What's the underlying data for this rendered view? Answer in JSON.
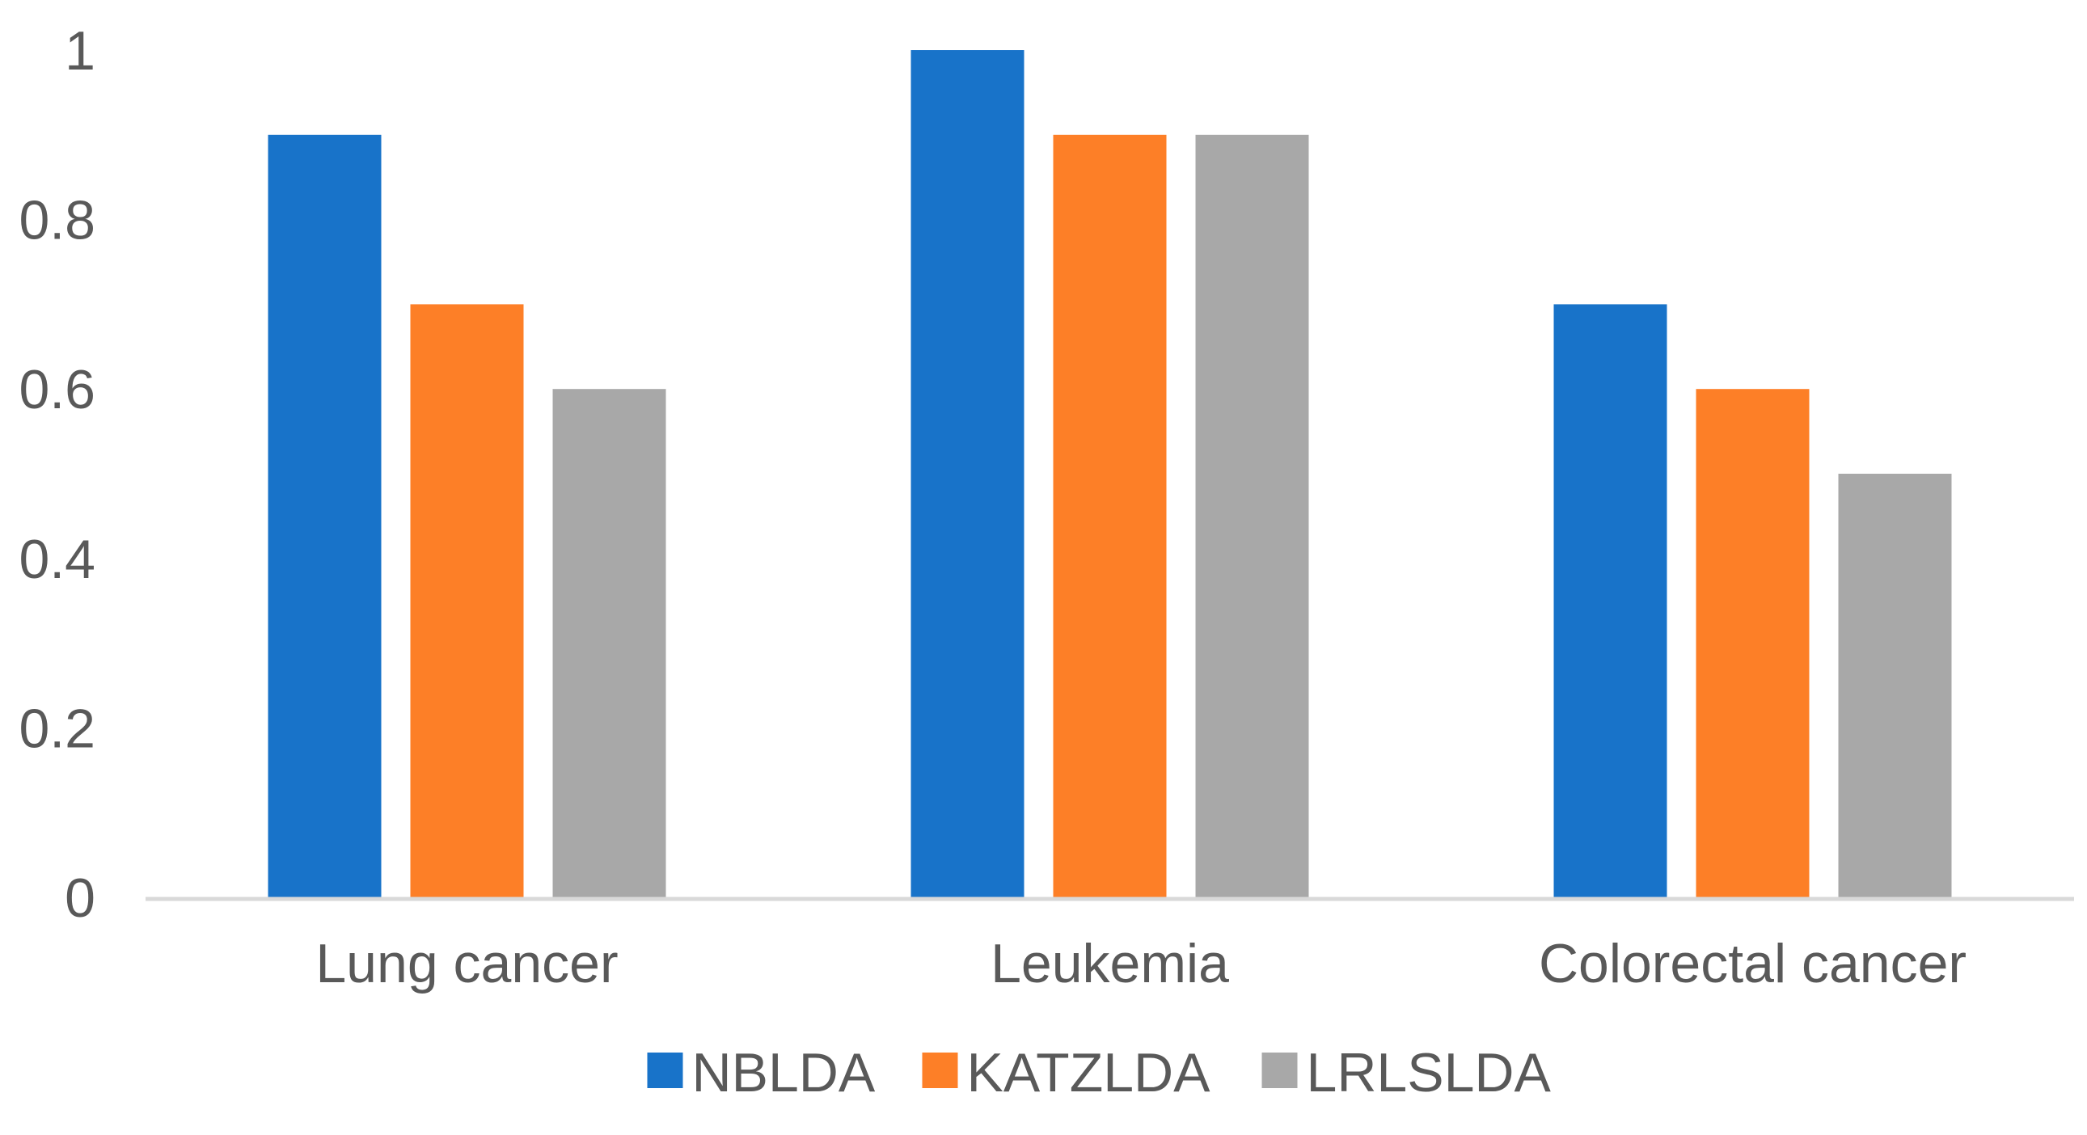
{
  "chart_data": {
    "type": "bar",
    "title": "",
    "xlabel": "",
    "ylabel": "",
    "categories": [
      "Lung cancer",
      "Leukemia",
      "Colorectal cancer"
    ],
    "series": [
      {
        "name": "NBLDA",
        "color": "#1873C9",
        "values": [
          0.9,
          1.0,
          0.7
        ]
      },
      {
        "name": "KATZLDA",
        "color": "#FD7F27",
        "values": [
          0.7,
          0.9,
          0.6
        ]
      },
      {
        "name": "LRLSLDA",
        "color": "#A8A8A8",
        "values": [
          0.6,
          0.9,
          0.5
        ]
      }
    ],
    "ylim": [
      0,
      1
    ],
    "yticks": [
      "0",
      "0.2",
      "0.4",
      "0.6",
      "0.8",
      "1"
    ],
    "grid": false,
    "legend_position": "bottom",
    "axis_color": "#D9D9D9"
  }
}
